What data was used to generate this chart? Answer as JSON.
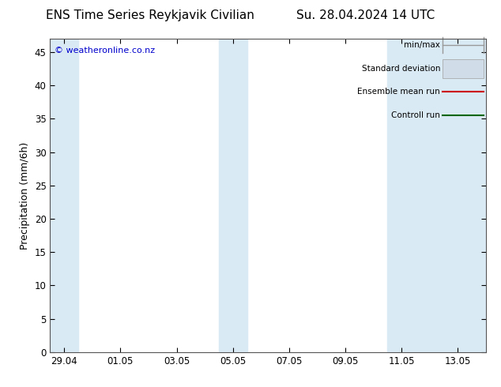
{
  "title_left": "ENS Time Series Reykjavik Civilian",
  "title_right": "Su. 28.04.2024 14 UTC",
  "ylabel": "Precipitation (mm/6h)",
  "ylim": [
    0,
    47
  ],
  "yticks": [
    0,
    5,
    10,
    15,
    20,
    25,
    30,
    35,
    40,
    45
  ],
  "xtick_labels": [
    "29.04",
    "01.05",
    "03.05",
    "05.05",
    "07.05",
    "09.05",
    "11.05",
    "13.05"
  ],
  "xtick_positions": [
    0,
    2,
    4,
    6,
    8,
    10,
    12,
    14
  ],
  "xlim": [
    -0.5,
    15.0
  ],
  "blue_bands": [
    {
      "x_start": -0.5,
      "x_end": 0.5
    },
    {
      "x_start": 5.5,
      "x_end": 6.5
    },
    {
      "x_start": 11.5,
      "x_end": 15.0
    }
  ],
  "band_color": "#daeaf5",
  "watermark": "© weatheronline.co.nz",
  "watermark_color": "#0000cc",
  "legend_labels": [
    "min/max",
    "Standard deviation",
    "Ensemble mean run",
    "Controll run"
  ],
  "bg_color": "#ffffff",
  "outer_bg": "#ffffff",
  "title_fontsize": 11,
  "axis_fontsize": 9,
  "tick_fontsize": 8.5,
  "legend_fontsize": 7.5
}
